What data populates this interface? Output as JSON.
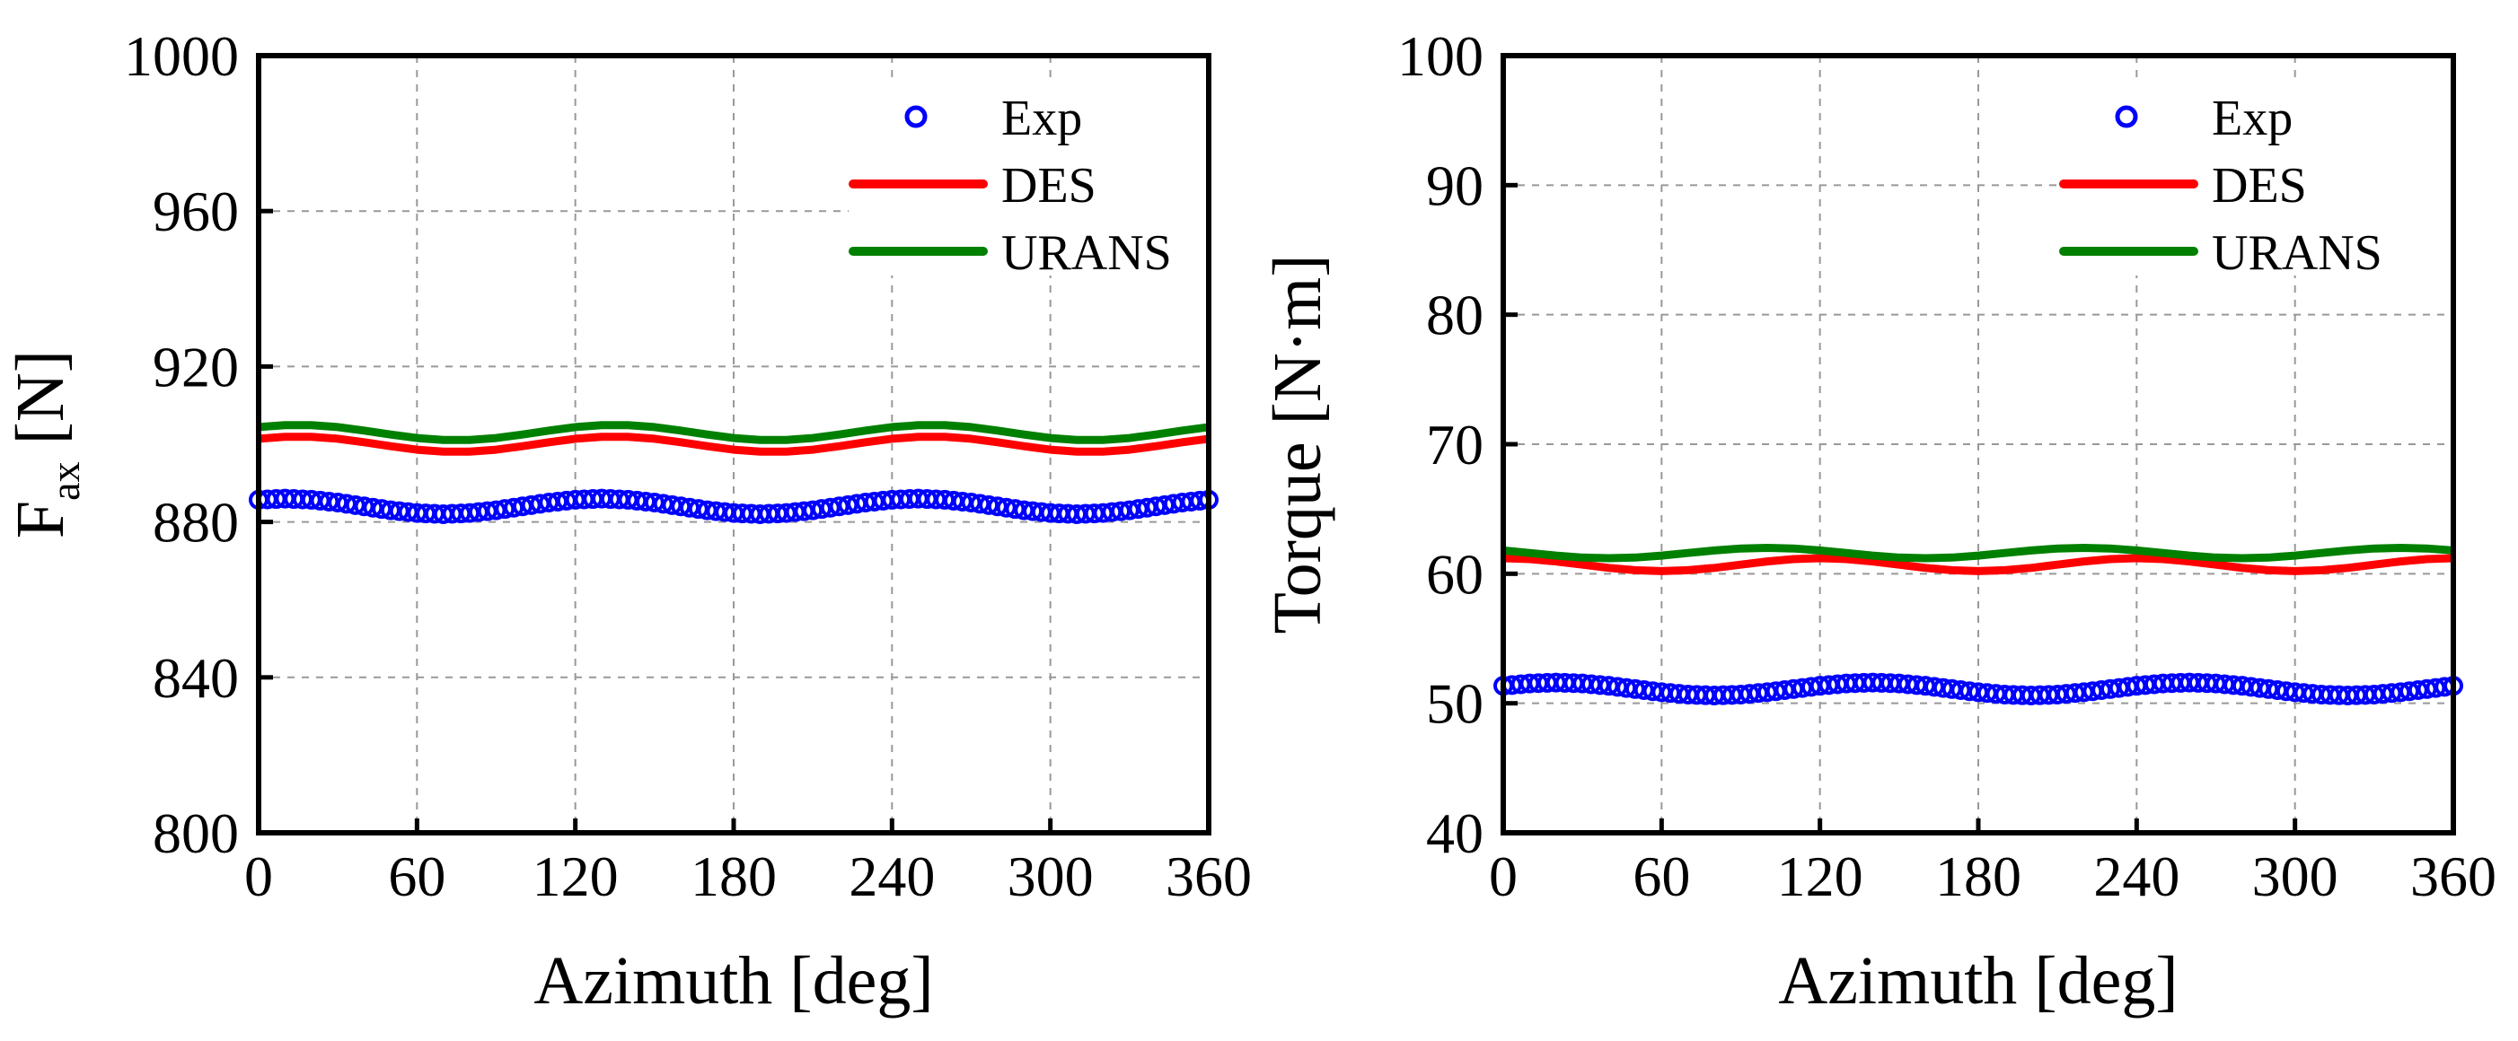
{
  "chart_data": [
    {
      "type": "line",
      "xlabel": "Azimuth [deg]",
      "ylabel": {
        "main": "F",
        "sub": "ax",
        "unit": " [N]"
      },
      "xlim": [
        0,
        360
      ],
      "ylim": [
        800,
        1000
      ],
      "xticks": [
        "0",
        "60",
        "120",
        "180",
        "240",
        "300",
        "360"
      ],
      "yticks": [
        "800",
        "840",
        "880",
        "920",
        "960",
        "1000"
      ],
      "grid": true,
      "legend_position": "top-right",
      "x": [
        0,
        10,
        20,
        30,
        40,
        50,
        60,
        70,
        80,
        90,
        100,
        110,
        120,
        130,
        140,
        150,
        160,
        170,
        180,
        190,
        200,
        210,
        220,
        230,
        240,
        250,
        260,
        270,
        280,
        290,
        300,
        310,
        320,
        330,
        340,
        350,
        360
      ],
      "series": [
        {
          "name": "Exp",
          "style": "marker",
          "color": "#0000ff",
          "values": [
            885.7,
            886,
            885.7,
            885,
            884,
            883,
            882.3,
            882,
            882.3,
            883,
            884,
            885,
            885.7,
            886,
            885.7,
            885,
            884,
            883,
            882.3,
            882,
            882.3,
            883,
            884,
            885,
            885.7,
            886,
            885.7,
            885,
            884,
            883,
            882.3,
            882,
            882.3,
            883,
            884,
            885,
            885.7
          ]
        },
        {
          "name": "DES",
          "style": "line",
          "color": "#ff0000",
          "values": [
            901.4,
            901.9,
            901.9,
            901.4,
            900.5,
            899.5,
            898.6,
            898.1,
            898.1,
            898.6,
            899.5,
            900.5,
            901.4,
            901.9,
            901.9,
            901.4,
            900.5,
            899.5,
            898.6,
            898.1,
            898.1,
            898.6,
            899.5,
            900.5,
            901.4,
            901.9,
            901.9,
            901.4,
            900.5,
            899.5,
            898.6,
            898.1,
            898.1,
            898.6,
            899.5,
            900.5,
            901.4
          ]
        },
        {
          "name": "URANS",
          "style": "line",
          "color": "#008000",
          "values": [
            904.4,
            904.9,
            904.9,
            904.4,
            903.5,
            902.5,
            901.6,
            901.1,
            901.1,
            901.6,
            902.5,
            903.5,
            904.4,
            904.9,
            904.9,
            904.4,
            903.5,
            902.5,
            901.6,
            901.1,
            901.1,
            901.6,
            902.5,
            903.5,
            904.4,
            904.9,
            904.9,
            904.4,
            903.5,
            902.5,
            901.6,
            901.1,
            901.1,
            901.6,
            902.5,
            903.5,
            904.4
          ]
        }
      ]
    },
    {
      "type": "line",
      "xlabel": "Azimuth [deg]",
      "ylabel": {
        "main": "Torque  [N·m]",
        "sub": "",
        "unit": ""
      },
      "xlim": [
        0,
        360
      ],
      "ylim": [
        40,
        100
      ],
      "xticks": [
        "0",
        "60",
        "120",
        "180",
        "240",
        "300",
        "360"
      ],
      "yticks": [
        "40",
        "50",
        "60",
        "70",
        "80",
        "90",
        "100"
      ],
      "grid": true,
      "legend_position": "top-right",
      "x": [
        0,
        10,
        20,
        30,
        40,
        50,
        60,
        70,
        80,
        90,
        100,
        110,
        120,
        130,
        140,
        150,
        160,
        170,
        180,
        190,
        200,
        210,
        220,
        230,
        240,
        250,
        260,
        270,
        280,
        290,
        300,
        310,
        320,
        330,
        340,
        350,
        360
      ],
      "series": [
        {
          "name": "Exp",
          "style": "marker",
          "color": "#0000ff",
          "values": [
            51.35,
            51.53,
            51.6,
            51.53,
            51.35,
            51.1,
            50.85,
            50.67,
            50.6,
            50.67,
            50.85,
            51.1,
            51.35,
            51.53,
            51.6,
            51.53,
            51.35,
            51.1,
            50.85,
            50.67,
            50.6,
            50.67,
            50.85,
            51.1,
            51.35,
            51.53,
            51.6,
            51.53,
            51.35,
            51.1,
            50.85,
            50.67,
            50.6,
            50.67,
            50.85,
            51.1,
            51.35
          ]
        },
        {
          "name": "DES",
          "style": "line",
          "color": "#ff0000",
          "values": [
            61.2,
            61.13,
            60.95,
            60.7,
            60.45,
            60.27,
            60.2,
            60.27,
            60.45,
            60.7,
            60.95,
            61.13,
            61.2,
            61.13,
            60.95,
            60.7,
            60.45,
            60.27,
            60.2,
            60.27,
            60.45,
            60.7,
            60.95,
            61.13,
            61.2,
            61.13,
            60.95,
            60.7,
            60.45,
            60.27,
            60.2,
            60.27,
            60.45,
            60.7,
            60.95,
            61.13,
            61.2
          ]
        },
        {
          "name": "URANS",
          "style": "line",
          "color": "#008000",
          "values": [
            61.8,
            61.6,
            61.4,
            61.25,
            61.2,
            61.25,
            61.4,
            61.6,
            61.8,
            61.95,
            62,
            61.95,
            61.8,
            61.6,
            61.4,
            61.25,
            61.2,
            61.25,
            61.4,
            61.6,
            61.8,
            61.95,
            62,
            61.95,
            61.8,
            61.6,
            61.4,
            61.25,
            61.2,
            61.25,
            61.4,
            61.6,
            61.8,
            61.95,
            62,
            61.95,
            61.8
          ]
        }
      ]
    }
  ]
}
